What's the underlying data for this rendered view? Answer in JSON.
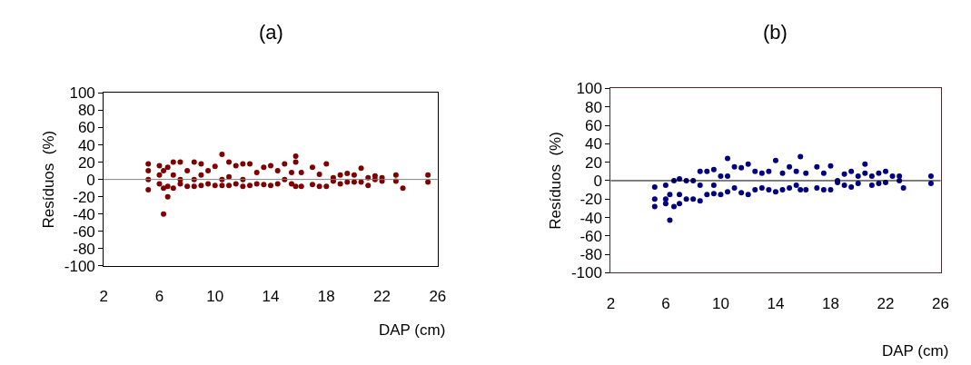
{
  "chart_data": [
    {
      "type": "scatter",
      "title": "(a)",
      "xlabel": "DAP (cm)",
      "ylabel": "Resíduos  (%)",
      "xlim": [
        2,
        26
      ],
      "xticks": [
        2,
        6,
        10,
        14,
        18,
        22,
        26
      ],
      "ylim": [
        -100,
        100
      ],
      "yticks": [
        -100,
        -80,
        -60,
        -40,
        -20,
        0,
        20,
        40,
        60,
        80,
        100
      ],
      "marker": "circle",
      "ref_lines": [
        {
          "axis": "y",
          "value": 0,
          "color": "#808080"
        }
      ],
      "series": [
        {
          "color": "#800000",
          "x": [
            5.2,
            5.2,
            5.2,
            5.2,
            6.0,
            6.0,
            6.0,
            6.3,
            6.3,
            6.3,
            6.6,
            6.6,
            6.6,
            7.0,
            7.0,
            7.0,
            7.5,
            7.5,
            7.5,
            8.0,
            8.0,
            8.5,
            8.5,
            8.5,
            9.0,
            9.0,
            9.0,
            9.5,
            9.5,
            10.0,
            10.0,
            10.5,
            10.5,
            10.5,
            11.0,
            11.0,
            11.0,
            11.5,
            11.5,
            12.0,
            12.0,
            12.0,
            12.5,
            12.5,
            13.0,
            13.0,
            13.5,
            13.5,
            14.0,
            14.0,
            14.5,
            14.5,
            15.0,
            15.0,
            15.5,
            15.5,
            15.8,
            15.8,
            15.8,
            16.2,
            16.2,
            17.0,
            17.0,
            17.5,
            17.5,
            18.0,
            18.0,
            18.5,
            18.5,
            19.0,
            19.0,
            19.5,
            19.5,
            20.0,
            20.0,
            20.5,
            20.5,
            21.0,
            21.0,
            21.5,
            21.5,
            22.0,
            22.0,
            23.0,
            23.0,
            23.5,
            25.3,
            25.3
          ],
          "values": [
            18,
            10,
            0,
            -12,
            16,
            5,
            -5,
            10,
            -10,
            -40,
            14,
            -8,
            -20,
            20,
            5,
            -10,
            20,
            0,
            -5,
            10,
            -8,
            20,
            0,
            -8,
            18,
            5,
            -7,
            10,
            -5,
            15,
            -7,
            29,
            0,
            -7,
            20,
            3,
            -7,
            16,
            -5,
            18,
            0,
            -8,
            18,
            -7,
            8,
            -5,
            14,
            -6,
            16,
            -7,
            10,
            -5,
            18,
            0,
            8,
            -5,
            27,
            20,
            -8,
            8,
            -8,
            14,
            -6,
            6,
            -8,
            18,
            -8,
            2,
            -2,
            5,
            -5,
            7,
            -3,
            5,
            -3,
            13,
            -3,
            2,
            -7,
            4,
            0,
            2,
            -2,
            5,
            -2,
            -10,
            5,
            -3
          ]
        }
      ]
    },
    {
      "type": "scatter",
      "title": "(b)",
      "xlabel": "DAP (cm)",
      "ylabel": "Resíduos  (%)",
      "xlim": [
        2,
        26
      ],
      "xticks": [
        2,
        6,
        10,
        14,
        18,
        22,
        26
      ],
      "ylim": [
        -100,
        100
      ],
      "yticks": [
        -100,
        -80,
        -60,
        -40,
        -20,
        0,
        20,
        40,
        60,
        80,
        100
      ],
      "marker": "circle",
      "ref_lines": [
        {
          "axis": "y",
          "value": 0,
          "color": "#000000"
        }
      ],
      "series": [
        {
          "color": "#000080",
          "x": [
            5.2,
            5.2,
            5.2,
            6.0,
            6.0,
            6.0,
            6.3,
            6.3,
            6.6,
            6.6,
            7.0,
            7.0,
            7.0,
            7.5,
            7.5,
            8.0,
            8.0,
            8.5,
            8.5,
            8.5,
            9.0,
            9.0,
            9.5,
            9.5,
            9.5,
            10.0,
            10.0,
            10.5,
            10.5,
            10.5,
            11.0,
            11.0,
            11.5,
            11.5,
            12.0,
            12.0,
            12.5,
            12.5,
            13.0,
            13.0,
            13.5,
            13.5,
            14.0,
            14.0,
            14.5,
            14.5,
            15.0,
            15.0,
            15.5,
            15.5,
            15.8,
            15.8,
            16.2,
            16.2,
            17.0,
            17.0,
            17.5,
            17.5,
            18.0,
            18.0,
            18.5,
            18.5,
            19.0,
            19.0,
            19.5,
            19.5,
            20.0,
            20.0,
            20.5,
            20.5,
            21.0,
            21.0,
            21.5,
            21.5,
            22.0,
            22.0,
            22.5,
            23.0,
            23.0,
            23.3,
            25.3,
            25.3
          ],
          "values": [
            -7,
            -20,
            -28,
            -5,
            -20,
            -25,
            -15,
            -43,
            0,
            -28,
            2,
            -15,
            -25,
            0,
            -20,
            0,
            -20,
            10,
            -5,
            -22,
            10,
            -15,
            12,
            -5,
            -14,
            5,
            -15,
            24,
            5,
            -12,
            15,
            -8,
            14,
            -13,
            18,
            -15,
            10,
            -10,
            8,
            -8,
            10,
            -10,
            22,
            -12,
            8,
            -10,
            15,
            -8,
            10,
            -5,
            26,
            -10,
            8,
            -10,
            15,
            -8,
            8,
            -10,
            16,
            -10,
            0,
            -2,
            7,
            -5,
            10,
            -7,
            5,
            -3,
            18,
            8,
            5,
            -5,
            8,
            -3,
            10,
            -2,
            5,
            5,
            0,
            -8,
            5,
            -3
          ]
        }
      ]
    }
  ]
}
